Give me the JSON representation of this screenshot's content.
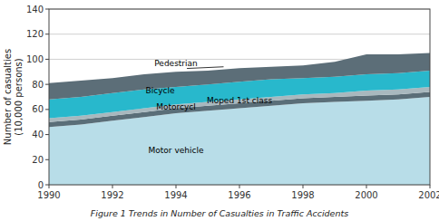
{
  "chart_data": {
    "type": "area",
    "stacked": true,
    "title": "Figure 1  Trends in Number of Casualties in Traffic Accidents",
    "y_label": "Number of casualties\n(10,000 persons)",
    "x": [
      1990,
      1991,
      1992,
      1993,
      1994,
      1995,
      1996,
      1997,
      1998,
      1999,
      2000,
      2001,
      2002
    ],
    "series": [
      {
        "color": "#b8dde8",
        "values": [
          46,
          48,
          51,
          54,
          57,
          59,
          61,
          63,
          65,
          66,
          67,
          68,
          70
        ]
      },
      {
        "color": "#5a6e78",
        "values": [
          4,
          4,
          4,
          4,
          4,
          4,
          4,
          4,
          4,
          4,
          4,
          4,
          4
        ]
      },
      {
        "color": "#a8b8be",
        "values": [
          3,
          3,
          3,
          3,
          3,
          3,
          3,
          3,
          3,
          3,
          4,
          4,
          4
        ]
      },
      {
        "color": "#28b8cc",
        "values": [
          15,
          15,
          15,
          15,
          14,
          14,
          14,
          14,
          13,
          13,
          13,
          13,
          13
        ]
      },
      {
        "color": "#5c6e78",
        "values": [
          13,
          13,
          12,
          12,
          12,
          11,
          11,
          10,
          10,
          12,
          16,
          15,
          14
        ]
      }
    ],
    "xlim": [
      1990,
      2002
    ],
    "xticks": [
      1990,
      1992,
      1994,
      1996,
      1998,
      2000,
      2002
    ],
    "ylim": [
      0,
      140
    ],
    "yticks": [
      0,
      20,
      40,
      60,
      80,
      100,
      120,
      140
    ],
    "grid": true,
    "annotations": [
      {
        "text": "Motor vehicle",
        "x": 1994,
        "y": 28
      },
      {
        "text": "Motorcycl",
        "x": 1994,
        "y": 62
      },
      {
        "text": "Moped 1st class",
        "x": 1996,
        "y": 67
      },
      {
        "text": "Bicycle",
        "x": 1993.5,
        "y": 75
      },
      {
        "text": "Pedestrian",
        "x": 1994,
        "y": 97,
        "arrow": {
          "x": 1995.5,
          "y": 94
        }
      }
    ]
  }
}
